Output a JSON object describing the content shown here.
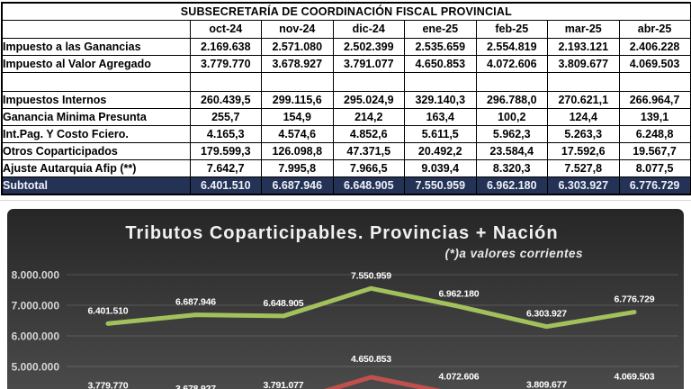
{
  "report": {
    "title": "SUBSECRETARÍA DE COORDINACIÓN FISCAL PROVINCIAL"
  },
  "table": {
    "columns": [
      "oct-24",
      "nov-24",
      "dic-24",
      "ene-25",
      "feb-25",
      "mar-25",
      "abr-25"
    ],
    "rows": [
      {
        "label": "Impuesto a las Ganancias",
        "values": [
          "2.169.638",
          "2.571.080",
          "2.502.399",
          "2.535.659",
          "2.554.819",
          "2.193.121",
          "2.406.228"
        ]
      },
      {
        "label": "Impuesto al Valor Agregado",
        "values": [
          "3.779.770",
          "3.678.927",
          "3.791.077",
          "4.650.853",
          "4.072.606",
          "3.809.677",
          "4.069.503"
        ]
      },
      {
        "label": "",
        "empty": true,
        "values": [
          "",
          "",
          "",
          "",
          "",
          "",
          ""
        ]
      },
      {
        "label": "Impuestos Internos",
        "values": [
          "260.439,5",
          "299.115,6",
          "295.024,9",
          "329.140,3",
          "296.788,0",
          "270.621,1",
          "266.964,7"
        ]
      },
      {
        "label": "Ganancia Minima Presunta",
        "values": [
          "255,7",
          "154,9",
          "214,2",
          "163,4",
          "100,2",
          "124,4",
          "139,1"
        ]
      },
      {
        "label": "Int.Pag. Y Costo Fciero.",
        "values": [
          "4.165,3",
          "4.574,6",
          "4.852,6",
          "5.611,5",
          "5.962,3",
          "5.263,3",
          "6.248,8"
        ]
      },
      {
        "label": "Otros Coparticipados",
        "values": [
          "179.599,3",
          "126.098,8",
          "47.371,5",
          "20.492,2",
          "23.584,4",
          "17.592,6",
          "19.567,7"
        ]
      },
      {
        "label": "Ajuste Autarquia Afip (**)",
        "values": [
          "7.642,7",
          "7.995,8",
          "7.966,5",
          "9.039,4",
          "8.320,3",
          "7.527,8",
          "8.077,5"
        ]
      }
    ],
    "subtotal": {
      "label": "Subtotal",
      "values": [
        "6.401.510",
        "6.687.946",
        "6.648.905",
        "7.550.959",
        "6.962.180",
        "6.303.927",
        "6.776.729"
      ]
    },
    "subtotal_bg": "#243256"
  },
  "chart_data": {
    "type": "line",
    "title": "Tributos Coparticipables. Provincias + Nación",
    "subtitle": "(*)a valores corrientes",
    "categories": [
      "oct-24",
      "nov-24",
      "dic-24",
      "ene-25",
      "feb-25",
      "mar-25",
      "abr-25"
    ],
    "series": [
      {
        "name": "Subtotal",
        "color": "#a2c15c",
        "values": [
          6401510,
          6687946,
          6648905,
          7550959,
          6962180,
          6303927,
          6776729
        ],
        "labels": [
          "6.401.510",
          "6.687.946",
          "6.648.905",
          "7.550.959",
          "6.962.180",
          "6.303.927",
          "6.776.729"
        ]
      },
      {
        "name": "Impuesto al Valor Agregado",
        "color": "#c0504d",
        "values": [
          3779770,
          3678927,
          3791077,
          4650853,
          4072606,
          3809677,
          4069503
        ],
        "labels": [
          "3.779.770",
          "3.678.927",
          "3.791.077",
          "4.650.853",
          "4.072.606",
          "3.809.677",
          "4.069.503"
        ]
      }
    ],
    "y_ticks": [
      {
        "value": 8000000,
        "label": "8.000.000"
      },
      {
        "value": 7000000,
        "label": "7.000.000"
      },
      {
        "value": 6000000,
        "label": "6.000.000"
      },
      {
        "value": 5000000,
        "label": "5.000.000"
      }
    ],
    "grid": true,
    "legend": "none",
    "background": {
      "top": "#262626",
      "bottom": "#4a4a4a"
    },
    "label_color": "#ffffff",
    "axis_label_color": "#d6d6d6",
    "gridline_color": "rgba(255,255,255,0.16)"
  }
}
